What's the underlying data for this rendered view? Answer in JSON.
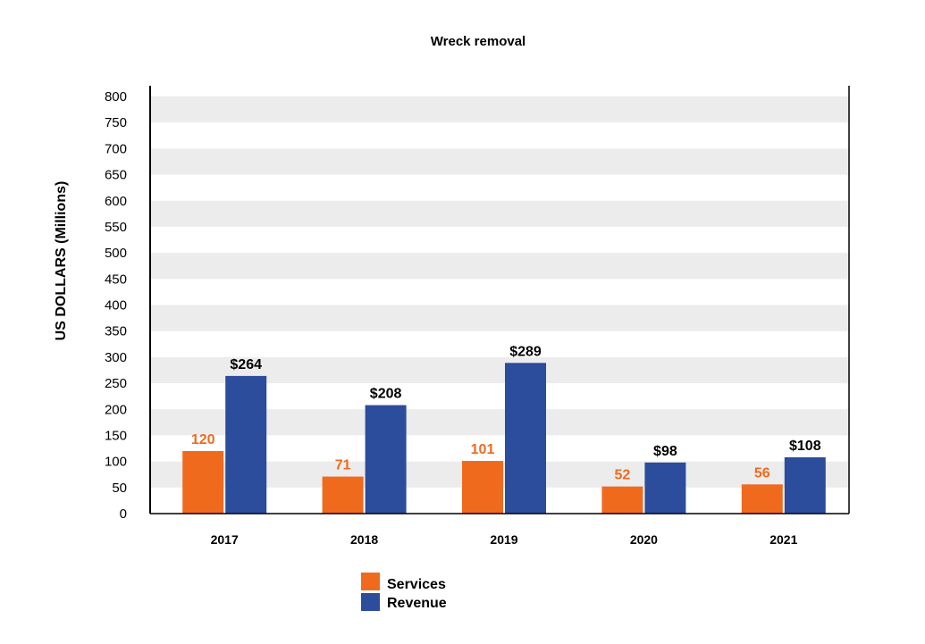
{
  "chart_data": {
    "type": "bar",
    "title": "Wreck removal",
    "xlabel": "",
    "ylabel": "US DOLLARS (Millions)",
    "ylim": [
      0,
      800
    ],
    "yticks": [
      "0",
      "50",
      "100",
      "150",
      "200",
      "250",
      "300",
      "350",
      "400",
      "450",
      "500",
      "550",
      "600",
      "650",
      "700",
      "750",
      "800"
    ],
    "categories": [
      "2017",
      "2018",
      "2019",
      "2020",
      "2021"
    ],
    "series": [
      {
        "name": "Services",
        "color": "#f06a1e",
        "values": [
          120,
          71,
          101,
          52,
          56
        ],
        "labels": [
          "120",
          "71",
          "101",
          "52",
          "56"
        ],
        "label_color": "#f06a1e"
      },
      {
        "name": "Revenue",
        "color": "#2c4c9c",
        "values": [
          264,
          208,
          289,
          98,
          108
        ],
        "labels": [
          "$264",
          "$208",
          "$289",
          "$98",
          "$108"
        ],
        "label_color": "#000000"
      }
    ],
    "grid": "alternating bands",
    "band_color": "#ececec",
    "legend_position": "bottom-center"
  }
}
